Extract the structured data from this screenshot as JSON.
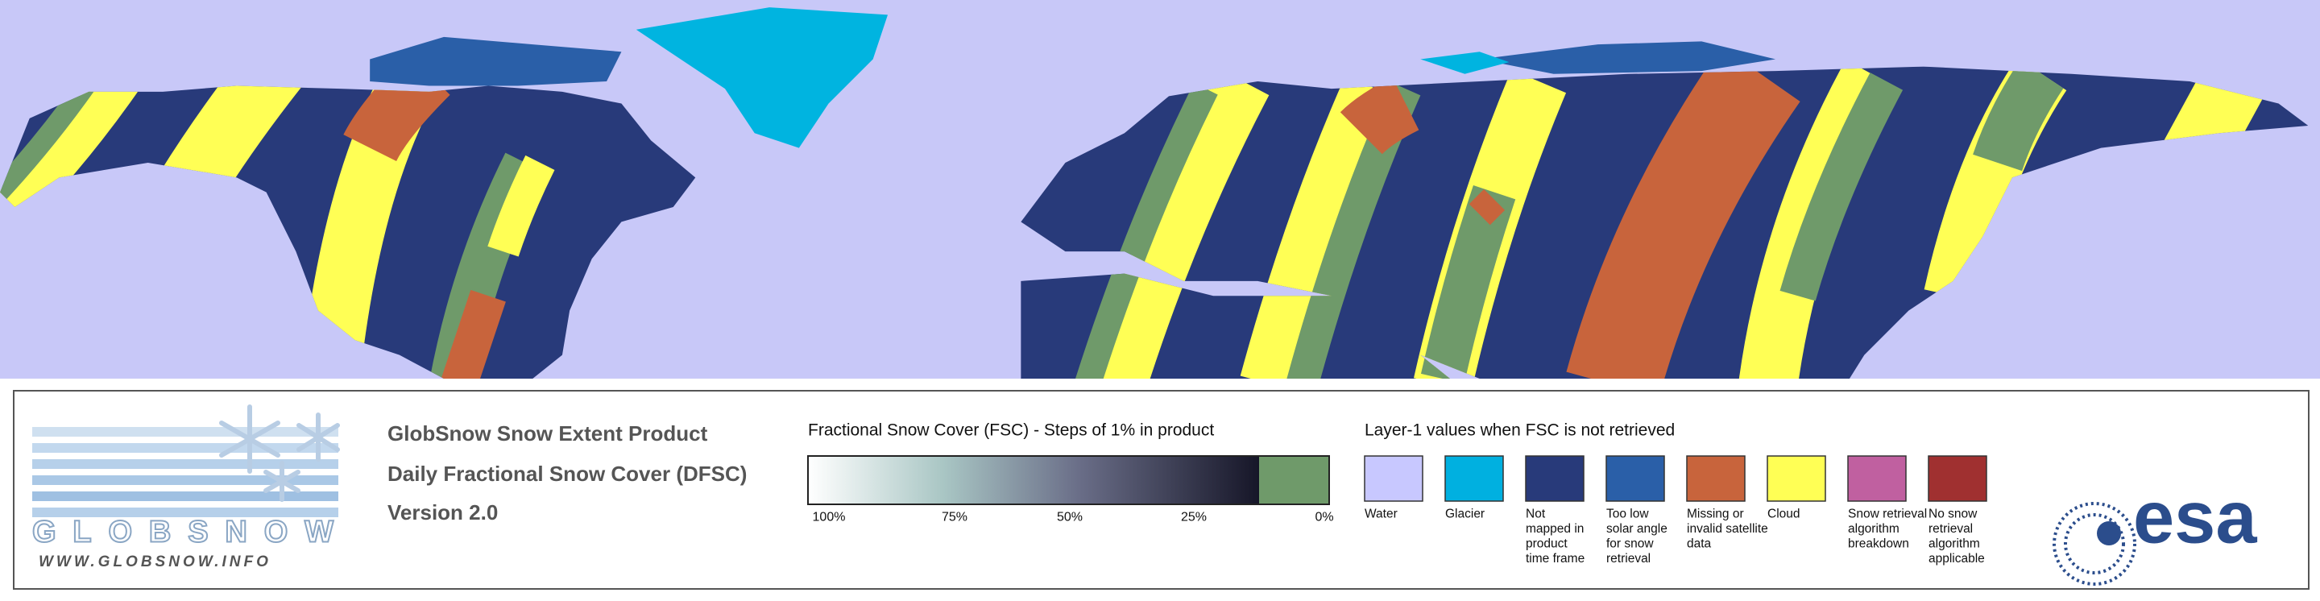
{
  "logo": {
    "name": "GLOBSNOW",
    "url": "WWW.GLOBSNOW.INFO"
  },
  "product": {
    "title": "GlobSnow Snow Extent Product",
    "subtitle": "Daily Fractional Snow Cover (DFSC)",
    "version": "Version 2.0"
  },
  "fsc_scale": {
    "title": "Fractional Snow Cover (FSC) - Steps of 1% in product",
    "ticks": [
      "100%",
      "75%",
      "50%",
      "25%",
      "0%"
    ]
  },
  "layer1": {
    "title": "Layer-1 values when FSC is not retrieved",
    "items": [
      {
        "label": [
          "Water"
        ],
        "color": "#c8c8ff"
      },
      {
        "label": [
          "Glacier"
        ],
        "color": "#00b0e0"
      },
      {
        "label": [
          "Not",
          "mapped in",
          "product",
          "time frame"
        ],
        "color": "#283a7a"
      },
      {
        "label": [
          "Too low",
          "solar angle",
          "for snow",
          "retrieval"
        ],
        "color": "#2a5fa8"
      },
      {
        "label": [
          "Missing or",
          "invalid satellite",
          "data"
        ],
        "color": "#c8643c"
      },
      {
        "label": [
          "Cloud"
        ],
        "color": "#ffff55"
      },
      {
        "label": [
          "Snow retrieval",
          "algorithm",
          "breakdown"
        ],
        "color": "#c060a0"
      },
      {
        "label": [
          "No snow",
          "retrieval",
          "algorithm",
          "applicable"
        ],
        "color": "#a03030"
      }
    ]
  },
  "agency": "esa"
}
